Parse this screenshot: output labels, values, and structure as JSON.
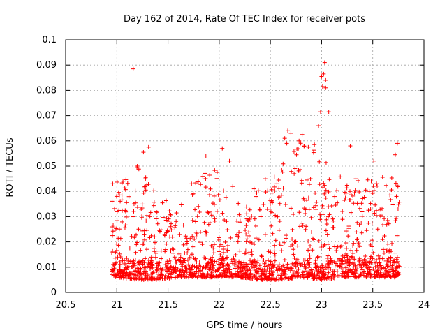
{
  "chart_data": {
    "type": "scatter",
    "title": "Day 162 of 2014, Rate Of TEC Index for receiver pots",
    "xlabel": "GPS time / hours",
    "ylabel": "ROTI / TECUs",
    "xlim": [
      20.5,
      24
    ],
    "ylim": [
      0,
      0.1
    ],
    "xticks": [
      "20.5",
      "21",
      "21.5",
      "22",
      "22.5",
      "23",
      "23.5",
      "24"
    ],
    "yticks": [
      "0",
      "0.01",
      "0.02",
      "0.03",
      "0.04",
      "0.05",
      "0.06",
      "0.07",
      "0.08",
      "0.09",
      "0.1"
    ],
    "grid": true,
    "marker": "+",
    "marker_color": "#ff0000",
    "series": [
      {
        "name": "ROTI",
        "x_range": [
          20.95,
          23.76
        ],
        "points": [
          [
            21.16,
            0.0885
          ],
          [
            23.03,
            0.091
          ],
          [
            23.02,
            0.0865
          ],
          [
            23.0,
            0.0855
          ],
          [
            23.04,
            0.084
          ],
          [
            23.01,
            0.0815
          ],
          [
            23.04,
            0.081
          ],
          [
            22.99,
            0.0715
          ],
          [
            23.07,
            0.0715
          ],
          [
            22.97,
            0.066
          ],
          [
            22.67,
            0.064
          ],
          [
            22.7,
            0.063
          ],
          [
            22.81,
            0.0625
          ],
          [
            22.64,
            0.061
          ],
          [
            22.78,
            0.06
          ],
          [
            22.66,
            0.059
          ],
          [
            23.74,
            0.059
          ],
          [
            22.93,
            0.0585
          ],
          [
            23.28,
            0.058
          ],
          [
            22.87,
            0.0575
          ],
          [
            21.31,
            0.0575
          ],
          [
            22.03,
            0.057
          ],
          [
            21.26,
            0.0555
          ],
          [
            23.72,
            0.0545
          ],
          [
            21.87,
            0.054
          ],
          [
            22.1,
            0.052
          ],
          [
            23.51,
            0.052
          ],
          [
            21.2,
            0.05
          ],
          [
            22.61,
            0.0485
          ],
          [
            21.98,
            0.0475
          ],
          [
            22.45,
            0.045
          ],
          [
            21.06,
            0.044
          ],
          [
            20.96,
            0.043
          ],
          [
            21.73,
            0.043
          ],
          [
            22.34,
            0.041
          ]
        ],
        "density_profile_y": [
          [
            21.0,
            0.006,
            0.044
          ],
          [
            21.2,
            0.005,
            0.05
          ],
          [
            21.4,
            0.005,
            0.04
          ],
          [
            21.6,
            0.006,
            0.034
          ],
          [
            21.8,
            0.006,
            0.048
          ],
          [
            22.0,
            0.006,
            0.05
          ],
          [
            22.2,
            0.006,
            0.038
          ],
          [
            22.4,
            0.005,
            0.042
          ],
          [
            22.6,
            0.005,
            0.05
          ],
          [
            22.8,
            0.006,
            0.06
          ],
          [
            23.0,
            0.005,
            0.055
          ],
          [
            23.2,
            0.006,
            0.045
          ],
          [
            23.4,
            0.006,
            0.045
          ],
          [
            23.6,
            0.006,
            0.046
          ],
          [
            23.75,
            0.006,
            0.045
          ]
        ]
      }
    ]
  }
}
